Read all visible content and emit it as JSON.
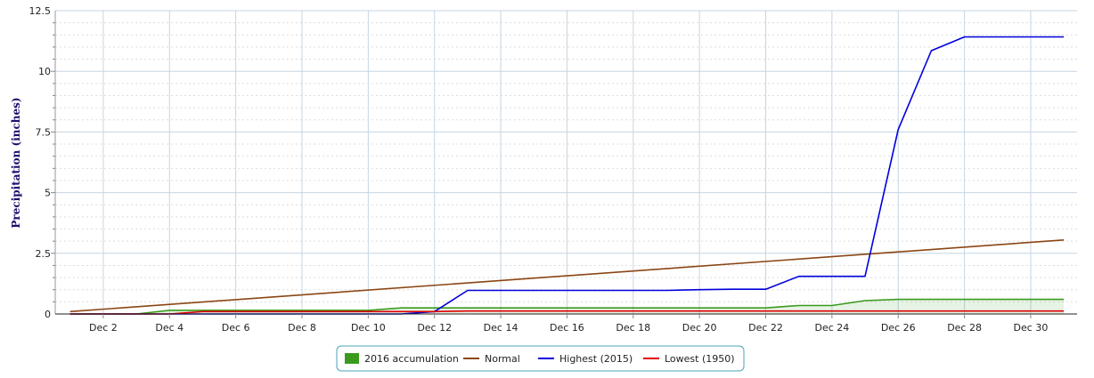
{
  "chart_data": {
    "type": "line",
    "title": "",
    "xlabel": "",
    "ylabel": "Precipitation (inches)",
    "ylim": [
      0,
      12.5
    ],
    "xlim": [
      1,
      31
    ],
    "grid": true,
    "legend_position": "bottom-center",
    "x_ticks": [
      2,
      4,
      6,
      8,
      10,
      12,
      14,
      16,
      18,
      20,
      22,
      24,
      26,
      28,
      30
    ],
    "x_tick_labels": [
      "Dec 2",
      "Dec 4",
      "Dec 6",
      "Dec 8",
      "Dec 10",
      "Dec 12",
      "Dec 14",
      "Dec 16",
      "Dec 18",
      "Dec 20",
      "Dec 22",
      "Dec 24",
      "Dec 26",
      "Dec 28",
      "Dec 30"
    ],
    "y_ticks": [
      0,
      2.5,
      5,
      7.5,
      10,
      12.5
    ],
    "y_tick_labels": [
      "0",
      "2.5",
      "5",
      "7.5",
      "10",
      "12.5"
    ],
    "series": [
      {
        "name": "2016 accumulation",
        "style": "area",
        "color": "#3a9a1d",
        "x": [
          1,
          2,
          3,
          4,
          5,
          6,
          7,
          8,
          9,
          10,
          11,
          12,
          13,
          14,
          15,
          16,
          17,
          18,
          19,
          20,
          21,
          22,
          23,
          24,
          25,
          26,
          27,
          28,
          29,
          30,
          31
        ],
        "values": [
          0,
          0,
          0,
          0.15,
          0.15,
          0.15,
          0.15,
          0.15,
          0.15,
          0.15,
          0.25,
          0.25,
          0.25,
          0.25,
          0.25,
          0.25,
          0.25,
          0.25,
          0.25,
          0.25,
          0.25,
          0.25,
          0.35,
          0.35,
          0.55,
          0.6,
          0.6,
          0.6,
          0.6,
          0.6,
          0.6
        ]
      },
      {
        "name": "Normal",
        "style": "line",
        "color": "#8b4513",
        "x": [
          1,
          31
        ],
        "values": [
          0.1,
          3.05
        ]
      },
      {
        "name": "Highest (2015)",
        "style": "line",
        "color": "#0000dd",
        "x": [
          1,
          2,
          3,
          4,
          5,
          6,
          7,
          8,
          9,
          10,
          11,
          12,
          13,
          14,
          15,
          16,
          17,
          18,
          19,
          20,
          21,
          22,
          23,
          24,
          25,
          26,
          27,
          28,
          29,
          30,
          31
        ],
        "values": [
          0,
          0,
          0,
          0,
          0,
          0,
          0,
          0,
          0,
          0,
          0,
          0.1,
          0.97,
          0.97,
          0.97,
          0.97,
          0.97,
          0.97,
          0.97,
          1.0,
          1.02,
          1.02,
          1.55,
          1.55,
          1.55,
          7.6,
          10.85,
          11.42,
          11.42,
          11.42,
          11.42
        ]
      },
      {
        "name": "Lowest (1950)",
        "style": "line",
        "color": "#dd0000",
        "x": [
          1,
          2,
          3,
          4,
          5,
          6,
          7,
          8,
          9,
          10,
          11,
          12,
          13,
          14,
          15,
          16,
          17,
          18,
          19,
          20,
          21,
          22,
          23,
          24,
          25,
          26,
          27,
          28,
          29,
          30,
          31
        ],
        "values": [
          0,
          0,
          0,
          0,
          0.1,
          0.1,
          0.1,
          0.1,
          0.1,
          0.1,
          0.1,
          0.1,
          0.12,
          0.12,
          0.12,
          0.12,
          0.12,
          0.12,
          0.12,
          0.12,
          0.12,
          0.12,
          0.12,
          0.12,
          0.12,
          0.12,
          0.12,
          0.12,
          0.12,
          0.12,
          0.12
        ]
      }
    ]
  }
}
